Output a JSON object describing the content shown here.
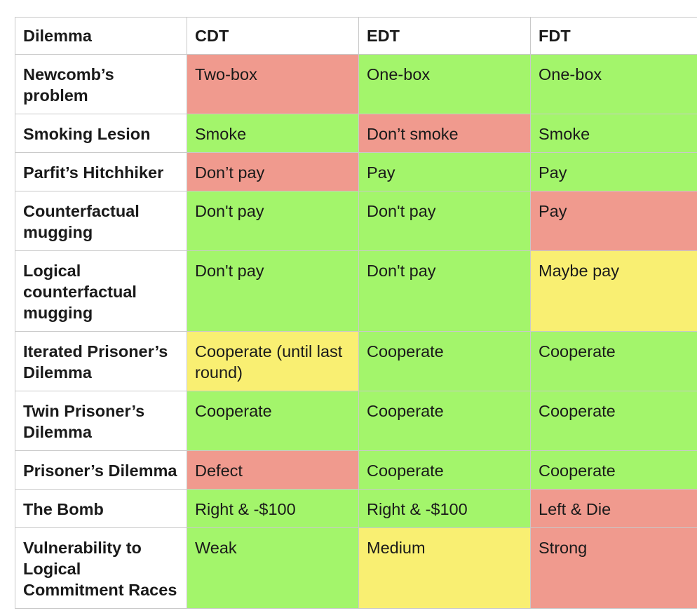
{
  "table": {
    "headers": [
      "Dilemma",
      "CDT",
      "EDT",
      "FDT"
    ],
    "rows": [
      {
        "dilemma": "Newcomb’s problem",
        "cells": [
          {
            "text": "Two-box",
            "color": "red"
          },
          {
            "text": "One-box",
            "color": "green"
          },
          {
            "text": "One-box",
            "color": "green"
          }
        ]
      },
      {
        "dilemma": "Smoking Lesion",
        "cells": [
          {
            "text": "Smoke",
            "color": "green"
          },
          {
            "text": "Don’t smoke",
            "color": "red"
          },
          {
            "text": "Smoke",
            "color": "green"
          }
        ]
      },
      {
        "dilemma": "Parfit’s Hitchhiker",
        "cells": [
          {
            "text": "Don’t pay",
            "color": "red"
          },
          {
            "text": "Pay",
            "color": "green"
          },
          {
            "text": "Pay",
            "color": "green"
          }
        ]
      },
      {
        "dilemma": "Counterfactual mugging",
        "cells": [
          {
            "text": "Don't pay",
            "color": "green"
          },
          {
            "text": "Don't pay",
            "color": "green"
          },
          {
            "text": "Pay",
            "color": "red"
          }
        ]
      },
      {
        "dilemma": "Logical counterfactual mugging",
        "cells": [
          {
            "text": "Don't pay",
            "color": "green"
          },
          {
            "text": "Don't pay",
            "color": "green"
          },
          {
            "text": "Maybe pay",
            "color": "yellow"
          }
        ]
      },
      {
        "dilemma": "Iterated Prisoner’s Dilemma",
        "cells": [
          {
            "text": "Cooperate (until last round)",
            "color": "yellow"
          },
          {
            "text": "Cooperate",
            "color": "green"
          },
          {
            "text": "Cooperate",
            "color": "green"
          }
        ]
      },
      {
        "dilemma": "Twin Prisoner’s Dilemma",
        "cells": [
          {
            "text": "Cooperate",
            "color": "green"
          },
          {
            "text": "Cooperate",
            "color": "green"
          },
          {
            "text": "Cooperate",
            "color": "green"
          }
        ]
      },
      {
        "dilemma": "Prisoner’s Dilemma",
        "cells": [
          {
            "text": "Defect",
            "color": "red"
          },
          {
            "text": "Cooperate",
            "color": "green"
          },
          {
            "text": "Cooperate",
            "color": "green"
          }
        ]
      },
      {
        "dilemma": "The Bomb",
        "cells": [
          {
            "text": "Right & -$100",
            "color": "green"
          },
          {
            "text": "Right & -$100",
            "color": "green"
          },
          {
            "text": "Left & Die",
            "color": "red"
          }
        ]
      },
      {
        "dilemma": "Vulnerability to Logical Commitment Races",
        "cells": [
          {
            "text": "Weak",
            "color": "green"
          },
          {
            "text": "Medium",
            "color": "yellow"
          },
          {
            "text": "Strong",
            "color": "red"
          }
        ]
      }
    ]
  },
  "colors": {
    "green": "#a3f56b",
    "red": "#f09a8e",
    "yellow": "#f9ef72",
    "border": "#c9c9c9"
  }
}
